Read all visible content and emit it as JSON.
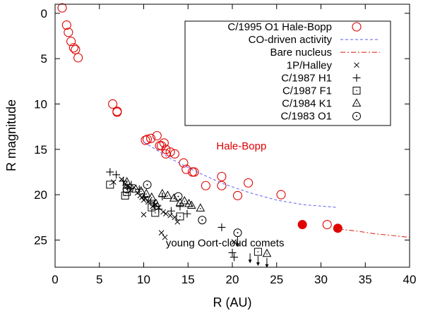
{
  "chart_data": {
    "type": "scatter",
    "xlabel": "R (AU)",
    "ylabel": "R magnitude",
    "xlim": [
      0,
      40
    ],
    "ylim": [
      28,
      -1
    ],
    "y_axis_inverted": true,
    "xticks": [
      0,
      5,
      10,
      15,
      20,
      25,
      30,
      35,
      40
    ],
    "yticks": [
      0,
      5,
      10,
      15,
      20,
      25
    ],
    "legend_position": "top-right",
    "annotations": [
      {
        "text": "Hale-Bopp",
        "x": 18.2,
        "y": 15.0,
        "color": "#e00000"
      },
      {
        "text": "young Oort-cloud comets",
        "x": 12.5,
        "y": 25.7,
        "color": "#000000"
      }
    ],
    "series": [
      {
        "name": "C/1995 O1 Hale-Bopp",
        "marker": "open-circle",
        "color": "#e00000",
        "points": [
          [
            0.8,
            -0.6
          ],
          [
            1.3,
            1.3
          ],
          [
            1.5,
            2.1
          ],
          [
            1.8,
            3.1
          ],
          [
            2.1,
            3.8
          ],
          [
            2.3,
            4.0
          ],
          [
            2.6,
            4.9
          ],
          [
            6.5,
            10.0
          ],
          [
            7.0,
            10.8
          ],
          [
            7.0,
            10.9
          ],
          [
            10.2,
            14.0
          ],
          [
            10.4,
            13.9
          ],
          [
            10.8,
            13.8
          ],
          [
            11.5,
            13.5
          ],
          [
            11.8,
            14.6
          ],
          [
            12.0,
            14.6
          ],
          [
            12.3,
            14.3
          ],
          [
            12.5,
            15.0
          ],
          [
            12.5,
            15.5
          ],
          [
            13.0,
            15.3
          ],
          [
            13.5,
            15.5
          ],
          [
            14.5,
            16.5
          ],
          [
            14.8,
            17.2
          ],
          [
            15.5,
            17.5
          ],
          [
            15.7,
            17.5
          ],
          [
            17.0,
            19.0
          ],
          [
            18.8,
            18.0
          ],
          [
            18.8,
            19.0
          ],
          [
            20.6,
            20.1
          ],
          [
            21.8,
            18.7
          ],
          [
            25.5,
            20.0
          ],
          [
            30.7,
            23.3
          ]
        ]
      },
      {
        "name": "Hale-Bopp (filled)",
        "marker": "filled-circle",
        "color": "#e00000",
        "points": [
          [
            27.9,
            23.3
          ],
          [
            31.9,
            23.7
          ]
        ]
      },
      {
        "name": "CO-driven activity",
        "marker": "dashed-line",
        "color": "#6f6ff0",
        "points": [
          [
            10.0,
            14.2
          ],
          [
            13.0,
            16.0
          ],
          [
            16.0,
            17.5
          ],
          [
            19.0,
            18.8
          ],
          [
            22.0,
            19.8
          ],
          [
            25.0,
            20.6
          ],
          [
            28.0,
            21.1
          ],
          [
            31.8,
            21.4
          ]
        ]
      },
      {
        "name": "Bare nucleus",
        "marker": "dash-dot-line",
        "color": "#e03020",
        "points": [
          [
            32.0,
            23.8
          ],
          [
            34.0,
            24.0
          ],
          [
            36.0,
            24.3
          ],
          [
            38.0,
            24.5
          ],
          [
            40.0,
            24.7
          ]
        ]
      },
      {
        "name": "1P/Halley",
        "marker": "x",
        "color": "#000000",
        "points": [
          [
            6.6,
            18.6
          ],
          [
            7.5,
            18.3
          ],
          [
            7.9,
            18.8
          ],
          [
            8.2,
            19.0
          ],
          [
            8.5,
            19.5
          ],
          [
            8.9,
            19.2
          ],
          [
            9.3,
            19.8
          ],
          [
            9.6,
            20.1
          ],
          [
            9.8,
            20.3
          ],
          [
            10.0,
            20.6
          ],
          [
            10.2,
            20.4
          ],
          [
            10.5,
            20.8
          ],
          [
            11.0,
            21.3
          ],
          [
            11.3,
            21.1
          ],
          [
            11.7,
            21.4
          ],
          [
            12.2,
            21.9
          ],
          [
            12.5,
            22.1
          ],
          [
            13.0,
            22.3
          ],
          [
            13.5,
            22.5
          ],
          [
            10.0,
            22.2
          ],
          [
            12.0,
            24.2
          ],
          [
            12.4,
            24.7
          ],
          [
            13.8,
            23.0
          ],
          [
            20.2,
            25.2
          ]
        ]
      },
      {
        "name": "C/1987 H1",
        "marker": "plus",
        "color": "#000000",
        "points": [
          [
            6.2,
            17.5
          ],
          [
            6.9,
            17.8
          ],
          [
            7.7,
            18.5
          ],
          [
            8.2,
            19.2
          ],
          [
            8.6,
            18.9
          ],
          [
            9.5,
            19.4
          ],
          [
            10.1,
            20.3
          ],
          [
            10.8,
            20.8
          ],
          [
            11.2,
            21.0
          ],
          [
            11.7,
            21.6
          ],
          [
            12.1,
            20.2
          ],
          [
            13.1,
            21.8
          ],
          [
            14.1,
            21.3
          ],
          [
            14.9,
            22.1
          ],
          [
            18.8,
            23.6
          ],
          [
            20.0,
            26.4
          ],
          [
            20.2,
            26.9
          ]
        ]
      },
      {
        "name": "C/1987 F1",
        "marker": "open-square",
        "color": "#000000",
        "points": [
          [
            6.2,
            18.9
          ],
          [
            7.9,
            20.1
          ],
          [
            8.1,
            19.7
          ],
          [
            10.9,
            21.4
          ],
          [
            11.3,
            22.0
          ],
          [
            14.1,
            22.4
          ],
          [
            22.9,
            26.3
          ]
        ]
      },
      {
        "name": "C/1984 K1",
        "marker": "open-triangle",
        "color": "#000000",
        "points": [
          [
            8.1,
            18.6
          ],
          [
            9.1,
            19.4
          ],
          [
            9.7,
            19.6
          ],
          [
            10.3,
            19.9
          ],
          [
            10.9,
            20.3
          ],
          [
            11.4,
            21.0
          ],
          [
            12.1,
            19.9
          ],
          [
            12.7,
            20.1
          ],
          [
            13.4,
            20.4
          ],
          [
            14.1,
            20.9
          ],
          [
            14.6,
            20.7
          ],
          [
            15.1,
            21.0
          ],
          [
            15.4,
            21.2
          ],
          [
            16.4,
            21.5
          ],
          [
            23.9,
            26.5
          ]
        ]
      },
      {
        "name": "C/1983 O1",
        "marker": "dotted-circle",
        "color": "#000000",
        "points": [
          [
            8.1,
            19.4
          ],
          [
            10.4,
            18.9
          ],
          [
            13.9,
            20.2
          ],
          [
            16.6,
            22.8
          ],
          [
            20.6,
            24.2
          ]
        ]
      }
    ],
    "upper_limit_arrows": [
      [
        20.6,
        24.2
      ],
      [
        22.0,
        26.0
      ],
      [
        22.9,
        26.3
      ],
      [
        23.9,
        26.5
      ]
    ]
  }
}
